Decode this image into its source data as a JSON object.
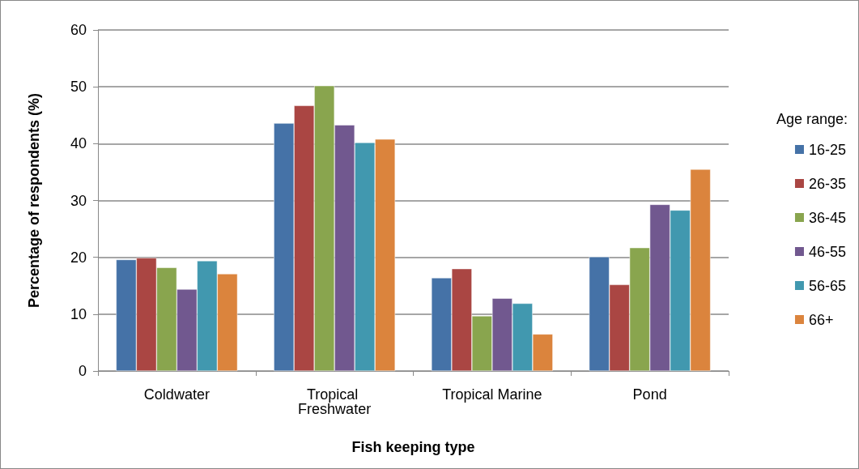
{
  "chart_data": {
    "type": "bar",
    "xlabel": "Fish keeping type",
    "ylabel": "Percentage of respondents (%)",
    "legend_title": "Age range:",
    "categories": [
      "Coldwater",
      "Tropical Freshwater",
      "Tropical Marine",
      "Pond"
    ],
    "series": [
      {
        "name": "16-25",
        "color": "#4572a7",
        "values": [
          19.6,
          43.6,
          16.4,
          20.1
        ]
      },
      {
        "name": "26-35",
        "color": "#aa4643",
        "values": [
          19.9,
          46.7,
          18.0,
          15.2
        ]
      },
      {
        "name": "36-45",
        "color": "#89a54e",
        "values": [
          18.2,
          50.2,
          9.7,
          21.7
        ]
      },
      {
        "name": "46-55",
        "color": "#71588f",
        "values": [
          14.4,
          43.3,
          12.8,
          29.3
        ]
      },
      {
        "name": "56-65",
        "color": "#4198af",
        "values": [
          19.4,
          40.2,
          11.9,
          28.3
        ]
      },
      {
        "name": "66+",
        "color": "#db843d",
        "values": [
          17.1,
          40.8,
          6.5,
          35.5
        ]
      }
    ],
    "ylim": [
      0,
      60
    ],
    "yticks": [
      0,
      10,
      20,
      30,
      40,
      50,
      60
    ],
    "grid": "y",
    "legend": "right"
  }
}
